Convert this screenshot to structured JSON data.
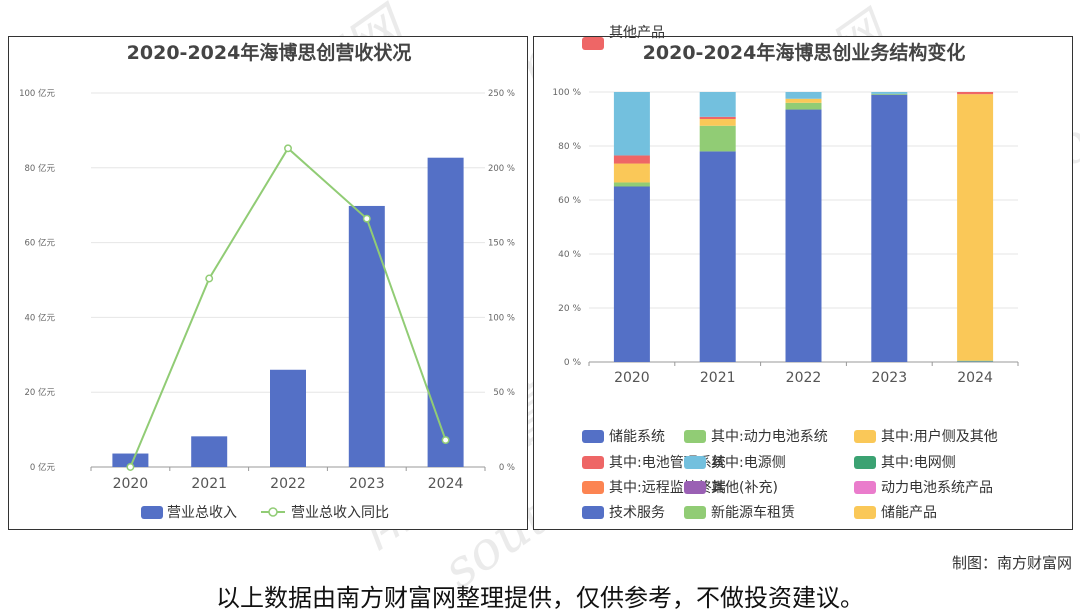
{
  "watermark": {
    "cn": "南方财富网",
    "en": "southmoney.com"
  },
  "footer": {
    "credit": "制图：南方财富网",
    "disclaimer": "以上数据由南方财富网整理提供，仅供参考，不做投资建议。"
  },
  "colors": {
    "储能系统": "#5470c6",
    "其中:动力电池系统": "#91cc75",
    "其中:用户侧及其他": "#fac858",
    "其中:电池管理系统": "#ee6666",
    "其中:电源侧": "#73c0de",
    "其中:电网侧": "#3ba272",
    "其中:远程监控终端": "#fc8452",
    "其他(补充)": "#9a60b4",
    "动力电池系统产品": "#ea7ccc",
    "技术服务": "#5470c6",
    "新能源车租赁": "#91cc75",
    "储能产品": "#fac858",
    "其他产品": "#ee6666",
    "line": "#91cc75"
  },
  "chart_data": [
    {
      "type": "bar",
      "title": "2020-2024年海博思创营收状况",
      "categories": [
        "2020",
        "2021",
        "2022",
        "2023",
        "2024"
      ],
      "y_ticks_left": [
        "0 亿元",
        "20 亿元",
        "40 亿元",
        "60 亿元",
        "80 亿元",
        "100 亿元"
      ],
      "y_ticks_right": [
        "0 %",
        "50 %",
        "100 %",
        "150 %",
        "200 %",
        "250 %"
      ],
      "ylim_left": [
        0,
        100
      ],
      "ylim_right": [
        0,
        250
      ],
      "grid": true,
      "legend_position": "bottom",
      "series": [
        {
          "name": "营业总收入",
          "type": "bar",
          "axis": "left",
          "values": [
            3.6,
            8.2,
            26.0,
            69.8,
            82.7
          ]
        },
        {
          "name": "营业总收入同比",
          "type": "line",
          "axis": "right",
          "values": [
            0,
            126,
            213,
            166,
            18
          ]
        }
      ]
    },
    {
      "type": "bar",
      "stacked": true,
      "title": "2020-2024年海博思创业务结构变化",
      "categories": [
        "2020",
        "2021",
        "2022",
        "2023",
        "2024"
      ],
      "y_ticks": [
        "0 %",
        "20 %",
        "40 %",
        "60 %",
        "80 %",
        "100 %"
      ],
      "ylim": [
        0,
        100
      ],
      "grid": true,
      "legend_position": "bottom",
      "legend": [
        "储能系统",
        "其中:动力电池系统",
        "其中:用户侧及其他",
        "其中:电池管理系统",
        "其中:电源侧",
        "其中:电网侧",
        "其中:远程监控终端",
        "其他(补充)",
        "动力电池系统产品",
        "技术服务",
        "新能源车租赁",
        "储能产品",
        "其他产品"
      ],
      "series": [
        {
          "name": "储能系统",
          "values": [
            65,
            78,
            93.5,
            99,
            0
          ]
        },
        {
          "name": "其中:动力电池系统",
          "values": [
            1.5,
            9.5,
            2.5,
            0.3,
            0
          ]
        },
        {
          "name": "其中:用户侧及其他",
          "values": [
            7,
            2.5,
            1.5,
            0,
            0
          ]
        },
        {
          "name": "其中:电池管理系统",
          "values": [
            3,
            0.8,
            0,
            0,
            0
          ]
        },
        {
          "name": "其中:电源侧",
          "values": [
            23.5,
            9.2,
            2.5,
            0.7,
            0
          ]
        },
        {
          "name": "技术服务",
          "values": [
            0,
            0,
            0,
            0,
            0.2
          ]
        },
        {
          "name": "新能源车租赁",
          "values": [
            0,
            0,
            0,
            0,
            0.3
          ]
        },
        {
          "name": "储能产品",
          "values": [
            0,
            0,
            0,
            0,
            98.7
          ]
        },
        {
          "name": "其他产品",
          "values": [
            0,
            0,
            0,
            0,
            0.8
          ]
        }
      ]
    }
  ]
}
